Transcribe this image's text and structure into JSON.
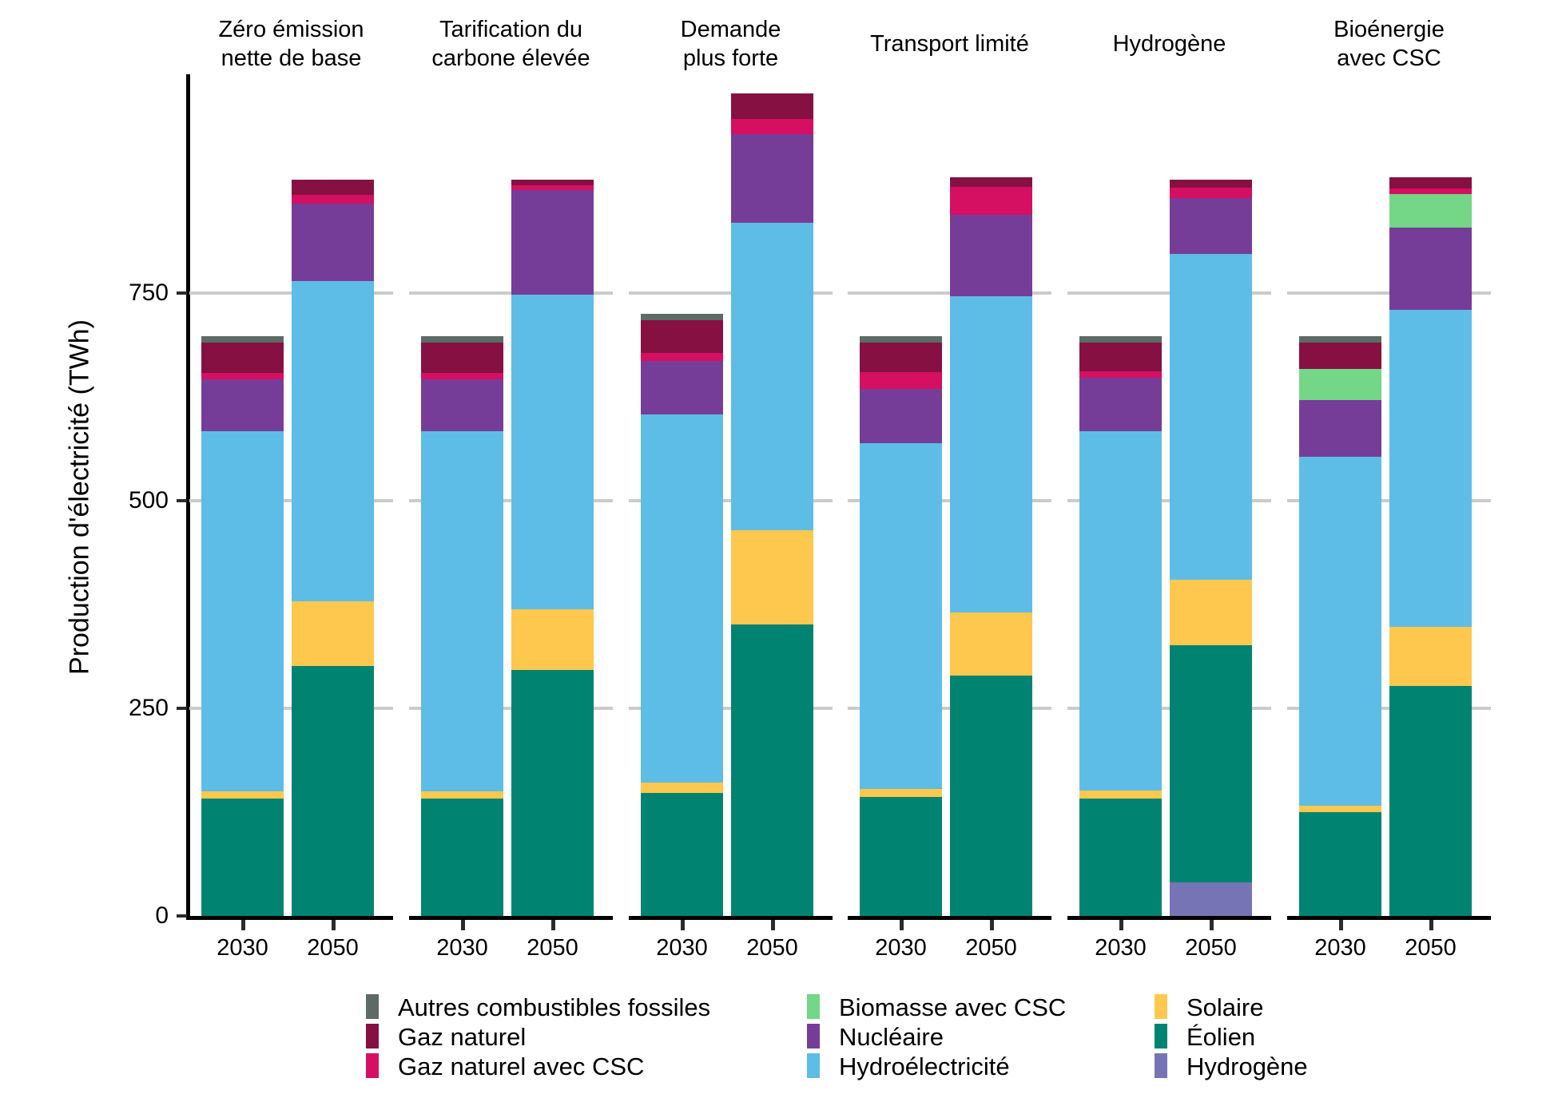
{
  "chart_data": {
    "type": "bar",
    "stacked": true,
    "faceted": true,
    "title": "",
    "xlabel": "",
    "ylabel": "Production d'électricité (TWh)",
    "y_ticks": [
      "0",
      "250",
      "500",
      "750"
    ],
    "ylim": [
      0,
      1000
    ],
    "grid": "horizontal",
    "legend_position": "bottom",
    "years": [
      "2030",
      "2050"
    ],
    "series_order_bottom_to_top": [
      "hydrogene",
      "eolien",
      "solaire",
      "hydro",
      "nucleaire",
      "biomasse_csc",
      "gaz_csc",
      "gaz",
      "autres"
    ],
    "series_meta": {
      "autres": {
        "label": "Autres combustibles fossiles",
        "color": "#5c6b65"
      },
      "gaz": {
        "label": "Gaz naturel",
        "color": "#871043"
      },
      "gaz_csc": {
        "label": "Gaz naturel avec CSC",
        "color": "#d50f61"
      },
      "biomasse_csc": {
        "label": "Biomasse avec CSC",
        "color": "#74d687"
      },
      "nucleaire": {
        "label": "Nucléaire",
        "color": "#763d98"
      },
      "hydro": {
        "label": "Hydroélectricité",
        "color": "#5ebde6"
      },
      "solaire": {
        "label": "Solaire",
        "color": "#fdc84d"
      },
      "eolien": {
        "label": "Éolien",
        "color": "#008471"
      },
      "hydrogene": {
        "label": "Hydrogène",
        "color": "#7674b5"
      }
    },
    "facets": [
      {
        "title_lines": [
          "Zéro émission",
          "nette de base"
        ],
        "values": {
          "2030": {
            "eolien": 141,
            "solaire": 9,
            "hydro": 434,
            "nucleaire": 62,
            "gaz_csc": 8,
            "gaz": 36,
            "autres": 8
          },
          "2050": {
            "eolien": 301,
            "solaire": 78,
            "hydro": 385,
            "nucleaire": 94,
            "gaz_csc": 10,
            "gaz": 19
          }
        }
      },
      {
        "title_lines": [
          "Tarification du",
          "carbone élevée"
        ],
        "values": {
          "2030": {
            "eolien": 141,
            "solaire": 9,
            "hydro": 434,
            "nucleaire": 62,
            "gaz_csc": 8,
            "gaz": 36,
            "autres": 8
          },
          "2050": {
            "eolien": 296,
            "solaire": 73,
            "hydro": 379,
            "nucleaire": 126,
            "gaz_csc": 6,
            "gaz": 7
          }
        }
      },
      {
        "title_lines": [
          "Demande",
          "plus forte"
        ],
        "values": {
          "2030": {
            "eolien": 148,
            "solaire": 13,
            "hydro": 443,
            "nucleaire": 64,
            "gaz_csc": 10,
            "gaz": 39,
            "autres": 8
          },
          "2050": {
            "eolien": 351,
            "solaire": 113,
            "hydro": 371,
            "nucleaire": 106,
            "gaz_csc": 19,
            "gaz": 30
          }
        }
      },
      {
        "title_lines": [
          "Transport limité"
        ],
        "values": {
          "2030": {
            "eolien": 143,
            "solaire": 10,
            "hydro": 416,
            "nucleaire": 66,
            "gaz_csc": 20,
            "gaz": 35,
            "autres": 8
          },
          "2050": {
            "eolien": 289,
            "solaire": 76,
            "hydro": 381,
            "nucleaire": 98,
            "gaz_csc": 34,
            "gaz": 11
          }
        }
      },
      {
        "title_lines": [
          "Hydrogène"
        ],
        "values": {
          "2030": {
            "eolien": 141,
            "solaire": 10,
            "hydro": 433,
            "nucleaire": 64,
            "gaz_csc": 8,
            "gaz": 34,
            "autres": 8
          },
          "2050": {
            "hydrogene": 40,
            "eolien": 286,
            "solaire": 79,
            "hydro": 392,
            "nucleaire": 67,
            "gaz_csc": 13,
            "gaz": 10
          }
        }
      },
      {
        "title_lines": [
          "Bioénergie",
          "avec CSC"
        ],
        "values": {
          "2030": {
            "eolien": 125,
            "solaire": 8,
            "hydro": 420,
            "nucleaire": 68,
            "biomasse_csc": 38,
            "gaz": 31,
            "autres": 8
          },
          "2050": {
            "eolien": 277,
            "solaire": 71,
            "hydro": 382,
            "nucleaire": 99,
            "biomasse_csc": 40,
            "gaz_csc": 7,
            "gaz": 13
          }
        }
      }
    ],
    "legend": {
      "columns": [
        [
          "autres",
          "gaz",
          "gaz_csc"
        ],
        [
          "biomasse_csc",
          "nucleaire",
          "hydro"
        ],
        [
          "solaire",
          "eolien",
          "hydrogene"
        ]
      ]
    }
  }
}
